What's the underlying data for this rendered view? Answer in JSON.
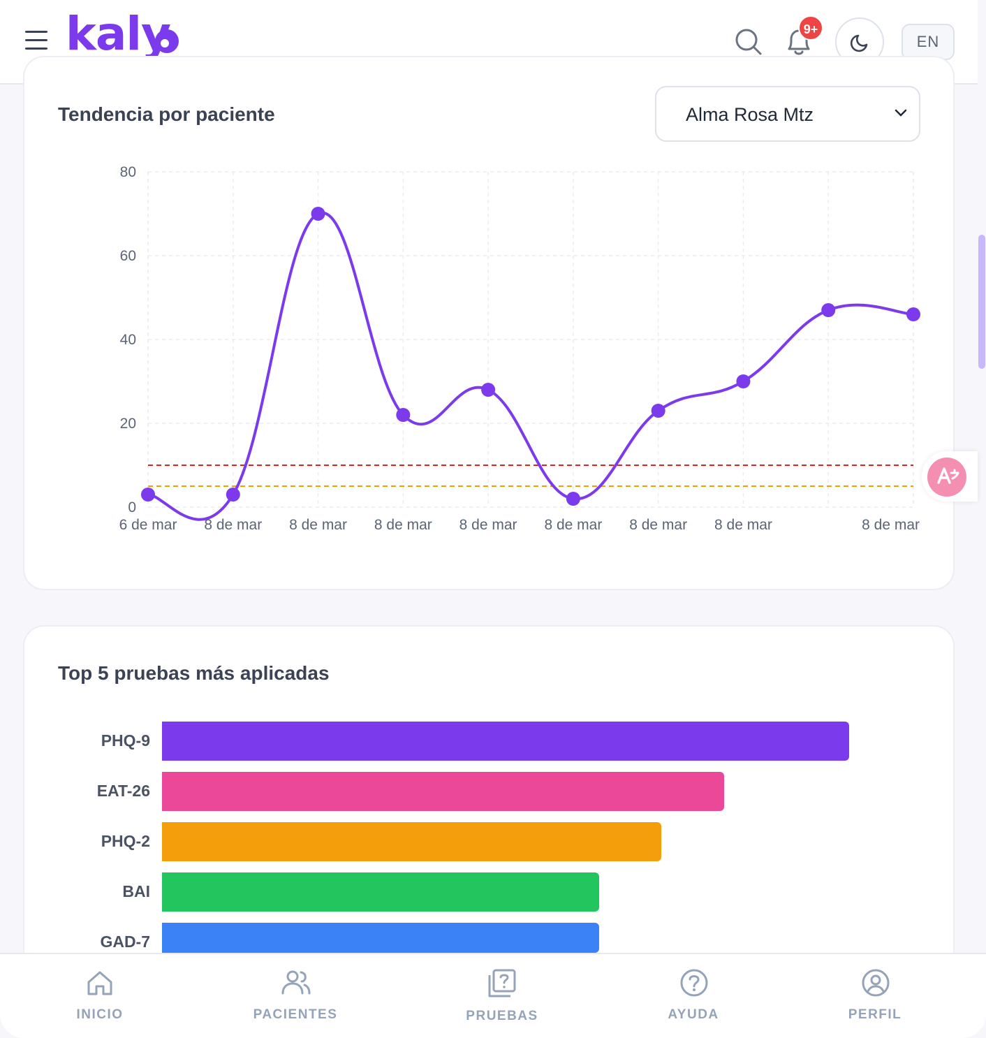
{
  "header": {
    "logo_text": "kaly",
    "notification_badge": "9+",
    "lang_label": "EN",
    "icons": [
      "menu-icon",
      "search-icon",
      "bell-icon",
      "moon-icon"
    ]
  },
  "trend_card": {
    "title": "Tendencia por paciente",
    "patient_select": {
      "value": "Alma Rosa Mtz"
    }
  },
  "chart_data": [
    {
      "type": "line",
      "x": [
        "6 de mar",
        "8 de mar",
        "8 de mar",
        "8 de mar",
        "8 de mar",
        "8 de mar",
        "8 de mar",
        "8 de mar",
        "",
        "8 de mar"
      ],
      "series": [
        {
          "values": [
            3,
            3,
            70,
            22,
            28,
            2,
            23,
            30,
            47,
            46
          ],
          "color": "#7c3aed"
        }
      ],
      "reference_lines": [
        {
          "value": 10,
          "color": "#dc2626",
          "style": "dashed"
        },
        {
          "value": 5,
          "color": "#f59e0b",
          "style": "dashed"
        }
      ],
      "y_ticks": [
        0,
        20,
        40,
        60,
        80
      ],
      "ylim": [
        0,
        80
      ],
      "grid": true,
      "smooth": true
    },
    {
      "type": "bar",
      "orientation": "horizontal",
      "title": "Top 5 pruebas más aplicadas",
      "categories": [
        "PHQ-9",
        "EAT-26",
        "PHQ-2",
        "BAI",
        "GAD-7"
      ],
      "values": [
        11,
        9,
        8,
        7,
        7
      ],
      "xlim": [
        0,
        12
      ],
      "colors": [
        "#7c3aed",
        "#ec4899",
        "#f59e0b",
        "#22c55e",
        "#3b82f6"
      ]
    }
  ],
  "bottom_nav": {
    "items": [
      {
        "label": "INICIO",
        "icon": "home-icon"
      },
      {
        "label": "PACIENTES",
        "icon": "users-icon"
      },
      {
        "label": "PRUEBAS",
        "icon": "tests-icon"
      },
      {
        "label": "AYUDA",
        "icon": "help-icon"
      },
      {
        "label": "PERFIL",
        "icon": "profile-icon"
      }
    ]
  }
}
